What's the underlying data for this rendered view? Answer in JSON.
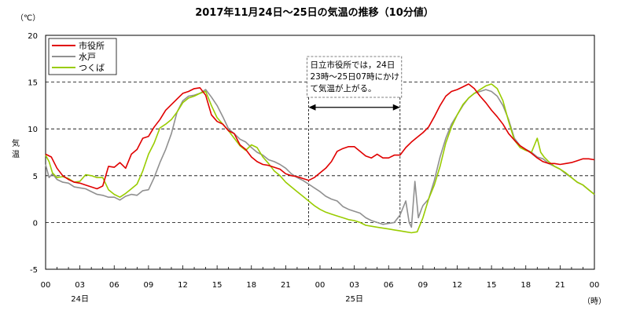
{
  "chart_data": {
    "type": "line",
    "title": "2017年11月24日～25日の気温の推移（10分値）",
    "ylabel": "気温",
    "yunit": "（℃）",
    "xunit": "（時）",
    "ylim": [
      -5,
      20
    ],
    "yticks": [
      -5,
      0,
      5,
      10,
      15,
      20
    ],
    "grid": "dashed horizontal at 0, 5, 10, 15",
    "x_hours_range": [
      0,
      48
    ],
    "xtick_labels": [
      "00",
      "03",
      "06",
      "09",
      "12",
      "15",
      "18",
      "21",
      "00",
      "03",
      "06",
      "09",
      "12",
      "15",
      "18",
      "21",
      "00"
    ],
    "day_labels": [
      {
        "hour": 3,
        "text": "24日"
      },
      {
        "hour": 27,
        "text": "25日"
      }
    ],
    "legend_position": "top-left",
    "series": [
      {
        "name": "市役所",
        "color": "#e00000",
        "points": [
          [
            0,
            7.3
          ],
          [
            0.5,
            7.0
          ],
          [
            1,
            5.8
          ],
          [
            1.5,
            5.0
          ],
          [
            2,
            4.6
          ],
          [
            2.5,
            4.3
          ],
          [
            3,
            4.2
          ],
          [
            3.5,
            4.0
          ],
          [
            4,
            3.8
          ],
          [
            4.5,
            3.6
          ],
          [
            5,
            3.9
          ],
          [
            5.5,
            6.0
          ],
          [
            6,
            5.9
          ],
          [
            6.5,
            6.4
          ],
          [
            7,
            5.8
          ],
          [
            7.5,
            7.3
          ],
          [
            8,
            7.8
          ],
          [
            8.5,
            9.0
          ],
          [
            9,
            9.2
          ],
          [
            9.5,
            10.2
          ],
          [
            10,
            11.0
          ],
          [
            10.5,
            12.0
          ],
          [
            11,
            12.6
          ],
          [
            11.5,
            13.2
          ],
          [
            12,
            13.8
          ],
          [
            12.5,
            14.0
          ],
          [
            13,
            14.3
          ],
          [
            13.5,
            14.4
          ],
          [
            14,
            13.6
          ],
          [
            14.5,
            11.5
          ],
          [
            15,
            10.8
          ],
          [
            15.5,
            10.5
          ],
          [
            16,
            9.8
          ],
          [
            16.5,
            9.5
          ],
          [
            17,
            8.3
          ],
          [
            17.5,
            7.8
          ],
          [
            18,
            7.0
          ],
          [
            18.5,
            6.5
          ],
          [
            19,
            6.2
          ],
          [
            19.5,
            6.1
          ],
          [
            20,
            5.9
          ],
          [
            20.5,
            5.7
          ],
          [
            21,
            5.2
          ],
          [
            21.5,
            5.0
          ],
          [
            22,
            4.9
          ],
          [
            22.5,
            4.7
          ],
          [
            23,
            4.5
          ],
          [
            23.5,
            4.8
          ],
          [
            24,
            5.3
          ],
          [
            24.5,
            5.8
          ],
          [
            25,
            6.5
          ],
          [
            25.5,
            7.6
          ],
          [
            26,
            7.9
          ],
          [
            26.5,
            8.1
          ],
          [
            27,
            8.1
          ],
          [
            27.5,
            7.6
          ],
          [
            28,
            7.1
          ],
          [
            28.5,
            6.9
          ],
          [
            29,
            7.3
          ],
          [
            29.5,
            6.9
          ],
          [
            30,
            6.9
          ],
          [
            30.5,
            7.2
          ],
          [
            31,
            7.2
          ],
          [
            31.5,
            8.0
          ],
          [
            32,
            8.6
          ],
          [
            32.5,
            9.1
          ],
          [
            33,
            9.6
          ],
          [
            33.5,
            10.2
          ],
          [
            34,
            11.3
          ],
          [
            34.5,
            12.5
          ],
          [
            35,
            13.5
          ],
          [
            35.5,
            14.0
          ],
          [
            36,
            14.2
          ],
          [
            36.5,
            14.5
          ],
          [
            37,
            14.8
          ],
          [
            37.5,
            14.3
          ],
          [
            38,
            13.5
          ],
          [
            38.5,
            12.8
          ],
          [
            39,
            12.0
          ],
          [
            39.5,
            11.3
          ],
          [
            40,
            10.5
          ],
          [
            40.5,
            9.5
          ],
          [
            41,
            8.8
          ],
          [
            41.5,
            8.2
          ],
          [
            42,
            7.8
          ],
          [
            42.5,
            7.4
          ],
          [
            43,
            6.9
          ],
          [
            43.5,
            6.5
          ],
          [
            44,
            6.3
          ],
          [
            44.5,
            6.3
          ],
          [
            45,
            6.2
          ],
          [
            45.5,
            6.3
          ],
          [
            46,
            6.4
          ],
          [
            46.5,
            6.6
          ],
          [
            47,
            6.8
          ],
          [
            47.5,
            6.8
          ],
          [
            48,
            6.7
          ]
        ]
      },
      {
        "name": "水戸",
        "color": "#909090",
        "points": [
          [
            0,
            6.2
          ],
          [
            0.3,
            4.8
          ],
          [
            0.6,
            5.2
          ],
          [
            1,
            4.6
          ],
          [
            1.5,
            4.3
          ],
          [
            2,
            4.2
          ],
          [
            2.5,
            3.8
          ],
          [
            3,
            3.7
          ],
          [
            3.5,
            3.6
          ],
          [
            4,
            3.3
          ],
          [
            4.5,
            3.0
          ],
          [
            5,
            2.9
          ],
          [
            5.5,
            2.7
          ],
          [
            6,
            2.7
          ],
          [
            6.5,
            2.4
          ],
          [
            7,
            2.8
          ],
          [
            7.5,
            3.0
          ],
          [
            8,
            2.9
          ],
          [
            8.5,
            3.4
          ],
          [
            9,
            3.5
          ],
          [
            9.5,
            4.8
          ],
          [
            10,
            6.4
          ],
          [
            10.5,
            7.8
          ],
          [
            11,
            9.5
          ],
          [
            11.5,
            11.8
          ],
          [
            12,
            13.0
          ],
          [
            12.5,
            13.5
          ],
          [
            13,
            13.6
          ],
          [
            13.5,
            13.8
          ],
          [
            14,
            14.2
          ],
          [
            14.5,
            13.4
          ],
          [
            15,
            12.5
          ],
          [
            15.5,
            11.3
          ],
          [
            16,
            10.0
          ],
          [
            16.5,
            9.5
          ],
          [
            17,
            8.9
          ],
          [
            17.5,
            8.6
          ],
          [
            18,
            8.0
          ],
          [
            18.5,
            7.5
          ],
          [
            19,
            7.2
          ],
          [
            19.5,
            6.7
          ],
          [
            20,
            6.5
          ],
          [
            20.5,
            6.2
          ],
          [
            21,
            5.8
          ],
          [
            21.5,
            5.2
          ],
          [
            22,
            4.8
          ],
          [
            22.5,
            4.5
          ],
          [
            23,
            4.1
          ],
          [
            23.5,
            3.7
          ],
          [
            24,
            3.3
          ],
          [
            24.5,
            2.8
          ],
          [
            25,
            2.5
          ],
          [
            25.5,
            2.3
          ],
          [
            26,
            1.7
          ],
          [
            26.5,
            1.4
          ],
          [
            27,
            1.2
          ],
          [
            27.5,
            1.0
          ],
          [
            28,
            0.5
          ],
          [
            28.5,
            0.2
          ],
          [
            29,
            0.0
          ],
          [
            29.5,
            -0.2
          ],
          [
            30,
            -0.1
          ],
          [
            30.5,
            0.0
          ],
          [
            31,
            0.8
          ],
          [
            31.5,
            2.3
          ],
          [
            31.8,
            0.0
          ],
          [
            32,
            -0.5
          ],
          [
            32.3,
            4.4
          ],
          [
            32.6,
            0.5
          ],
          [
            32.9,
            1.5
          ],
          [
            33,
            1.8
          ],
          [
            33.5,
            2.5
          ],
          [
            34,
            4.5
          ],
          [
            34.5,
            7.0
          ],
          [
            35,
            9.0
          ],
          [
            35.5,
            10.5
          ],
          [
            36,
            11.5
          ],
          [
            36.5,
            12.5
          ],
          [
            37,
            13.3
          ],
          [
            37.5,
            13.8
          ],
          [
            38,
            14.0
          ],
          [
            38.5,
            14.2
          ],
          [
            39,
            14.0
          ],
          [
            39.5,
            13.5
          ],
          [
            40,
            12.5
          ],
          [
            40.5,
            11.0
          ],
          [
            41,
            9.0
          ],
          [
            41.5,
            8.2
          ],
          [
            42,
            7.8
          ],
          [
            42.5,
            7.5
          ],
          [
            43,
            7.0
          ],
          [
            43.5,
            6.8
          ],
          [
            44,
            6.3
          ],
          [
            44.5,
            6.0
          ],
          [
            45,
            5.7
          ],
          [
            45.5,
            5.2
          ],
          [
            46,
            4.8
          ],
          [
            46.5,
            4.3
          ],
          [
            47,
            4.0
          ],
          [
            47.5,
            3.5
          ],
          [
            48,
            3.0
          ]
        ]
      },
      {
        "name": "つくば",
        "color": "#99cc00",
        "points": [
          [
            0,
            7.2
          ],
          [
            0.3,
            6.5
          ],
          [
            0.6,
            5.3
          ],
          [
            1,
            4.8
          ],
          [
            1.5,
            4.9
          ],
          [
            2,
            4.7
          ],
          [
            2.5,
            4.3
          ],
          [
            3,
            4.4
          ],
          [
            3.5,
            5.1
          ],
          [
            4,
            5.0
          ],
          [
            4.5,
            4.8
          ],
          [
            5,
            4.8
          ],
          [
            5.5,
            3.5
          ],
          [
            6,
            3.0
          ],
          [
            6.5,
            2.7
          ],
          [
            7,
            3.1
          ],
          [
            7.5,
            3.6
          ],
          [
            8,
            4.1
          ],
          [
            8.5,
            5.5
          ],
          [
            9,
            7.3
          ],
          [
            9.5,
            8.5
          ],
          [
            10,
            10.1
          ],
          [
            10.5,
            10.5
          ],
          [
            11,
            11.0
          ],
          [
            11.5,
            11.8
          ],
          [
            12,
            12.8
          ],
          [
            12.5,
            13.3
          ],
          [
            13,
            13.5
          ],
          [
            13.5,
            13.8
          ],
          [
            14,
            14.0
          ],
          [
            14.5,
            12.5
          ],
          [
            15,
            11.2
          ],
          [
            15.5,
            10.5
          ],
          [
            16,
            9.8
          ],
          [
            16.5,
            9.0
          ],
          [
            17,
            8.2
          ],
          [
            17.5,
            7.7
          ],
          [
            18,
            8.3
          ],
          [
            18.5,
            8.0
          ],
          [
            19,
            7.0
          ],
          [
            19.5,
            6.3
          ],
          [
            20,
            5.5
          ],
          [
            20.5,
            5.0
          ],
          [
            21,
            4.3
          ],
          [
            21.5,
            3.8
          ],
          [
            22,
            3.3
          ],
          [
            22.5,
            2.8
          ],
          [
            23,
            2.3
          ],
          [
            23.5,
            1.8
          ],
          [
            24,
            1.4
          ],
          [
            24.5,
            1.1
          ],
          [
            25,
            0.9
          ],
          [
            25.5,
            0.7
          ],
          [
            26,
            0.5
          ],
          [
            26.5,
            0.3
          ],
          [
            27,
            0.2
          ],
          [
            27.5,
            0.0
          ],
          [
            28,
            -0.3
          ],
          [
            28.5,
            -0.4
          ],
          [
            29,
            -0.5
          ],
          [
            29.5,
            -0.6
          ],
          [
            30,
            -0.7
          ],
          [
            30.5,
            -0.8
          ],
          [
            31,
            -0.9
          ],
          [
            31.5,
            -1.0
          ],
          [
            32,
            -1.1
          ],
          [
            32.5,
            -1.0
          ],
          [
            33,
            0.5
          ],
          [
            33.5,
            2.5
          ],
          [
            34,
            4.0
          ],
          [
            34.5,
            6.0
          ],
          [
            35,
            8.5
          ],
          [
            35.5,
            10.2
          ],
          [
            36,
            11.5
          ],
          [
            36.5,
            12.6
          ],
          [
            37,
            13.3
          ],
          [
            37.5,
            13.8
          ],
          [
            38,
            14.2
          ],
          [
            38.5,
            14.6
          ],
          [
            39,
            14.8
          ],
          [
            39.5,
            14.3
          ],
          [
            40,
            13.0
          ],
          [
            40.5,
            10.8
          ],
          [
            41,
            8.8
          ],
          [
            41.5,
            8.0
          ],
          [
            42,
            7.7
          ],
          [
            42.5,
            7.5
          ],
          [
            43,
            9.0
          ],
          [
            43.3,
            7.5
          ],
          [
            43.6,
            7.0
          ],
          [
            44,
            6.5
          ],
          [
            44.5,
            6.0
          ],
          [
            45,
            5.7
          ],
          [
            45.5,
            5.3
          ],
          [
            46,
            4.8
          ],
          [
            46.5,
            4.3
          ],
          [
            47,
            4.0
          ],
          [
            47.5,
            3.5
          ],
          [
            48,
            3.0
          ]
        ]
      }
    ],
    "annotation": {
      "lines": [
        "日立市役所では，24日",
        "23時～25日07時にかけ",
        "て気温が上がる。"
      ],
      "span_hours": [
        23,
        31
      ],
      "arrow_value": 12.3
    }
  }
}
